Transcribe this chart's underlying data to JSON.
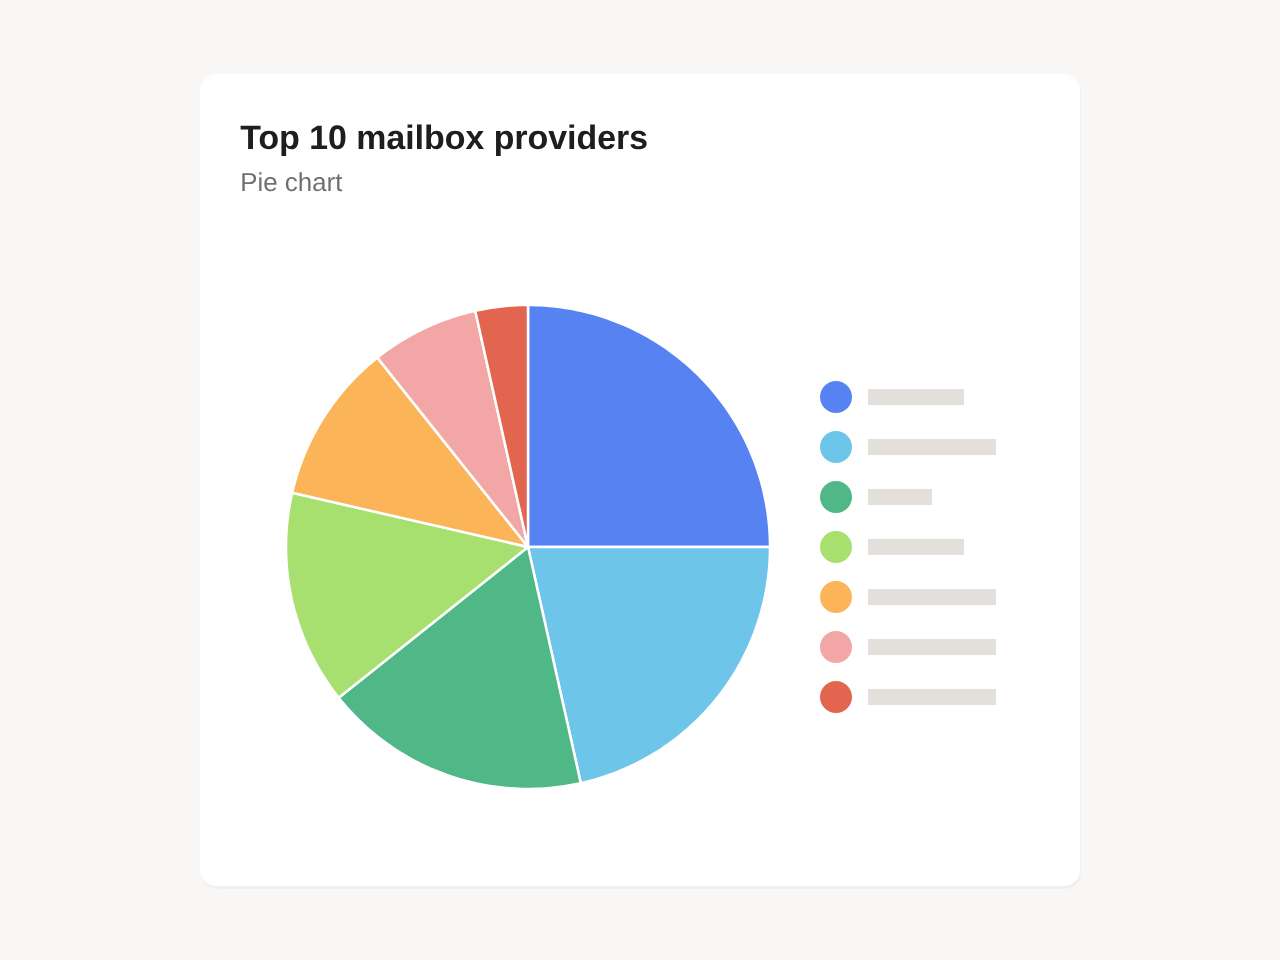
{
  "chart_data": {
    "type": "pie",
    "title": "Top 10 mailbox providers",
    "subtitle": "Pie chart",
    "categories": [
      null,
      null,
      null,
      null,
      null,
      null,
      null
    ],
    "values": [
      25,
      21.5,
      17.8,
      14.3,
      10.7,
      7.2,
      3.5
    ],
    "colors": [
      "#5683f1",
      "#6ec5ea",
      "#50b886",
      "#a7e06e",
      "#fbb458",
      "#f2a7a6",
      "#e2664f"
    ]
  }
}
